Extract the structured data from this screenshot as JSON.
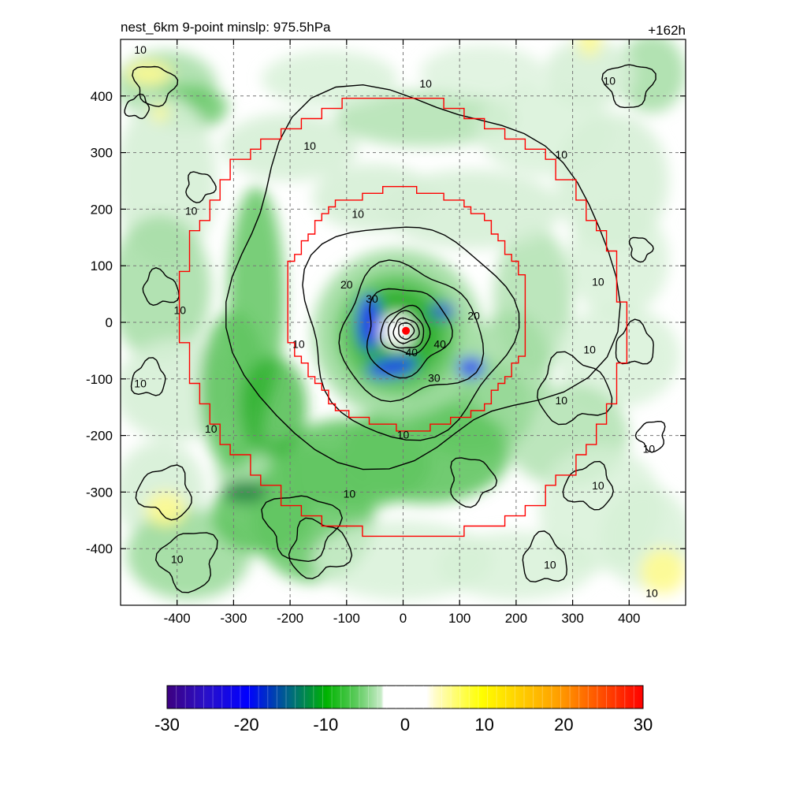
{
  "title_left": "nest_6km  9-point minslp: 975.5hPa",
  "title_right": "+162h",
  "chart_data": {
    "type": "heatmap",
    "description_free": true,
    "xlim": [
      -500,
      500
    ],
    "ylim": [
      -500,
      500
    ],
    "x_ticks": [
      -400,
      -300,
      -200,
      -100,
      0,
      100,
      200,
      300,
      400
    ],
    "y_ticks": [
      400,
      300,
      200,
      100,
      0,
      -100,
      -200,
      -300,
      -400
    ],
    "grid": true,
    "colorbar": {
      "ticks": [
        -30,
        -20,
        -10,
        0,
        10,
        20,
        30
      ],
      "range": [
        -30,
        30
      ]
    },
    "contour_labels": [
      {
        "text": "10",
        "x": -465,
        "y": 480
      },
      {
        "text": "10",
        "x": 365,
        "y": 425
      },
      {
        "text": "10",
        "x": 40,
        "y": 420
      },
      {
        "text": "10",
        "x": -165,
        "y": 310
      },
      {
        "text": "10",
        "x": 280,
        "y": 295
      },
      {
        "text": "10",
        "x": -375,
        "y": 195
      },
      {
        "text": "10",
        "x": -80,
        "y": 190
      },
      {
        "text": "10",
        "x": 345,
        "y": 70
      },
      {
        "text": "20",
        "x": -100,
        "y": 65
      },
      {
        "text": "30",
        "x": -55,
        "y": 40
      },
      {
        "text": "10",
        "x": -395,
        "y": 20
      },
      {
        "text": "20",
        "x": 125,
        "y": 10
      },
      {
        "text": "10",
        "x": -185,
        "y": -40
      },
      {
        "text": "40",
        "x": 65,
        "y": -40
      },
      {
        "text": "10",
        "x": 330,
        "y": -50
      },
      {
        "text": "40",
        "x": 15,
        "y": -55
      },
      {
        "text": "30",
        "x": 55,
        "y": -100
      },
      {
        "text": "10",
        "x": -465,
        "y": -110
      },
      {
        "text": "10",
        "x": 280,
        "y": -140
      },
      {
        "text": "10",
        "x": -340,
        "y": -190
      },
      {
        "text": "10",
        "x": 0,
        "y": -200
      },
      {
        "text": "10",
        "x": 435,
        "y": -225
      },
      {
        "text": "10",
        "x": 345,
        "y": -290
      },
      {
        "text": "10",
        "x": -95,
        "y": -305
      },
      {
        "text": "10",
        "x": -400,
        "y": -420
      },
      {
        "text": "10",
        "x": 260,
        "y": -430
      },
      {
        "text": "10",
        "x": 440,
        "y": -480
      }
    ],
    "center_marker": {
      "x": 5,
      "y": -15
    },
    "colors": {
      "inner_box": "#ff0000",
      "outer_box": "#ff0000",
      "center": "#ff0000"
    }
  }
}
